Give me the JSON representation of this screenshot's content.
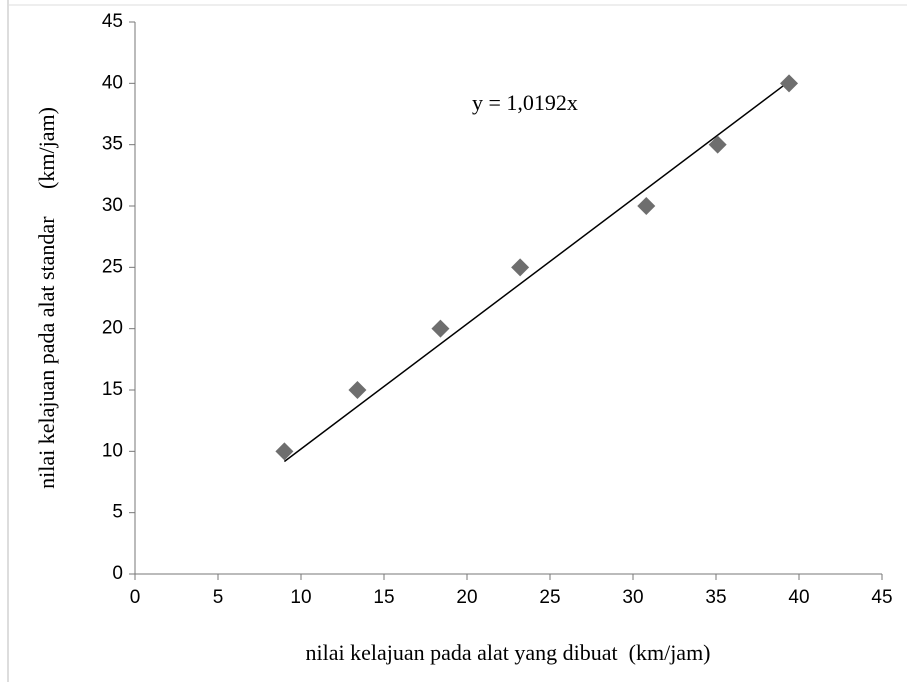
{
  "chart_data": {
    "type": "scatter",
    "x_label": "nilai kelajuan pada alat yang dibuat  (km/jam)",
    "y_label": "nilai kelajuan pada alat standar     (km/jam)",
    "x": [
      9,
      13.4,
      18.4,
      23.2,
      30.8,
      35.1,
      39.4
    ],
    "values": [
      10,
      15,
      20,
      25,
      30,
      35,
      40
    ],
    "color": "#6e6e6e",
    "xlim": [
      0,
      45
    ],
    "ylim": [
      0,
      45
    ],
    "xticks": [
      0,
      5,
      10,
      15,
      20,
      25,
      30,
      35,
      40,
      45
    ],
    "yticks": [
      0,
      5,
      10,
      15,
      20,
      25,
      30,
      35,
      40,
      45
    ],
    "trendline": {
      "value": 1.0192,
      "label": "y = 1,0192x"
    }
  }
}
